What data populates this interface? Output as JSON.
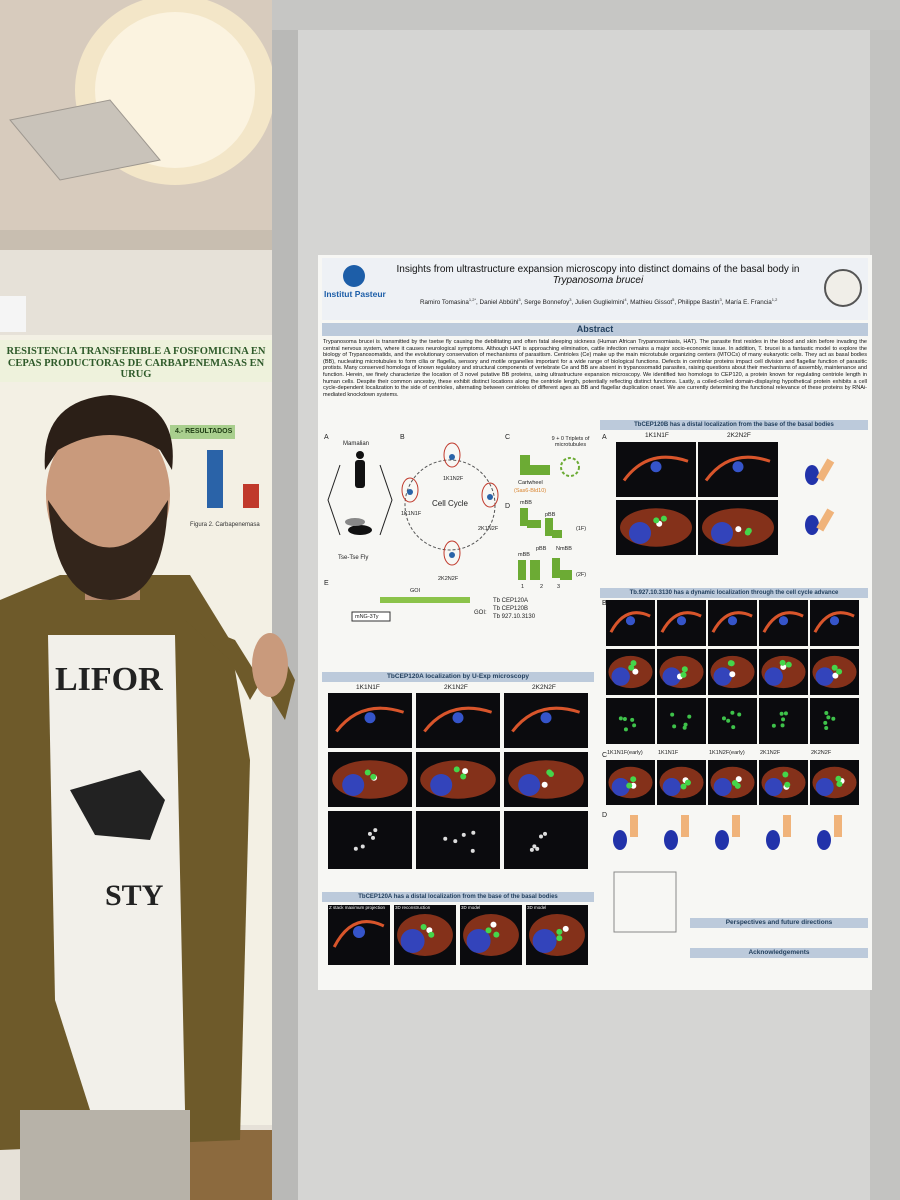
{
  "left_poster": {
    "title": "RESISTENCIA TRANSFERIBLE A FOSFOMICINA EN CEPAS PRODUCTORAS DE CARBAPENEMASAS EN URUG",
    "results_heading": "4.- RESULTADOS",
    "figure_caption": "Figura 2. Carbapenemasa"
  },
  "shirt": {
    "line1": "LIFOR",
    "line2": "STY"
  },
  "poster": {
    "institute": "Institut Pasteur",
    "title": "Insights from ultrastructure expansion microscopy into distinct domains of the basal body in",
    "title_species": "Trypanosoma brucei",
    "authors": [
      {
        "name": "Ramiro Tomasina",
        "affil": "1,2*"
      },
      {
        "name": "Daniel Abbühl",
        "affil": "3"
      },
      {
        "name": "Serge Bonnefoy",
        "affil": "3"
      },
      {
        "name": "Julien Guglielmini",
        "affil": "4"
      },
      {
        "name": "Mathieu Gissot",
        "affil": "5"
      },
      {
        "name": "Philippe Bastin",
        "affil": "3"
      },
      {
        "name": "María E. Francia",
        "affil": "1,2"
      }
    ],
    "abstract_heading": "Abstract",
    "abstract": "Trypanosoma brucei is transmitted by the tsetse fly causing the debilitating and often fatal sleeping sickness (Human African Trypanosomiasis, HAT). The parasite first resides in the blood and skin before invading the central nervous system, where it causes neurological symptoms. Although HAT is approaching elimination, cattle infection remains a major socio-economic issue. In addition, T. brucei is a fantastic model to explore the biology of Trypanosomatids, and the evolutionary conservation of mechanisms of parasitism. Centrioles (Ce) make up the main microtubule organizing centers (MTOCs) of many eukaryotic cells. They act as basal bodies (BB), nucleating microtubules to form cilia or flagella, sensory and motile organelles important for a wide range of biological functions. Defects in centriolar proteins impact cell division and flagellar function of parasitic protists. Many conserved homologs of known regulatory and structural components of vertebrate Ce and BB are absent in trypanosomatid parasites, raising questions about their mechanisms of assembly, maintenance and function. Herein, we finely characterize the location of 3 novel putative BB proteins, using ultrastructure expansion microscopy. We identified two homologs to CEP120, a protein known for regulating centriole length in human cells. Despite their common ancestry, these exhibit distinct locations along the centriole length, potentially reflecting distinct functions. Lastly, a coiled-coiled domain-displaying hypothetical protein exhibits a cell cycle-dependent localization to the side of centrioles, alternating between centrioles of different ages as BB and flagellar duplication onset. We are currently determining the functional relevance of these proteins by RNAi-mediated knockdown systems.",
    "figure1": {
      "letters": [
        "A",
        "B",
        "C",
        "D",
        "E"
      ],
      "host": "Mamalian",
      "vector": "Tse-Tse Fly",
      "cycle": "Cell Cycle",
      "stages": [
        "1K1N2F",
        "1K1N1F",
        "2K1N2F",
        "2K2N2F"
      ],
      "triplets": "9 + 0 Triplets of microtubules",
      "cartwheel": "Cartwheel",
      "cartwheel_proteins": "(Sas6-Bld10)",
      "bb_labels": [
        "mBB",
        "pBB",
        "(1F)",
        "mBB",
        "pBB",
        "NmBB",
        "(2F)"
      ],
      "bb_numbers": [
        "1",
        "2",
        "3"
      ],
      "goi": "GOI",
      "tag": "mNG-3Ty",
      "goi_list_label": "GOI:",
      "goi_list": [
        "Tb CEP120A",
        "Tb CEP120B",
        "Tb 927.10.3130"
      ]
    },
    "section_cep120a": "TbCEP120A localization by U-Exp microscopy",
    "cep120a_columns": [
      "1K1N1F",
      "2K1N2F",
      "2K2N2F"
    ],
    "section_cep120a_distal": "TbCEP120A has a distal localization from the base of the basal bodies",
    "distal_columns": [
      "Z stack maximum projection",
      "3D reconstruction",
      "3D model",
      "3D model"
    ],
    "section_cep120b": "TbCEP120B has a distal localization from the base of the basal bodies",
    "cep120b_columns": [
      "1K1N1F",
      "2K2N2F"
    ],
    "section_3130": "Tb.927.10.3130 has a dynamic localization through the cell cycle advance",
    "stage_columns": [
      "1K1N1F(early)",
      "1K1N1F",
      "1K1N2F(early)",
      "2K1N2F",
      "2K2N2F"
    ],
    "right_letters": [
      "A",
      "B",
      "C",
      "D"
    ],
    "section_perspectives": "Perspectives and future directions",
    "section_acknowledgements": "Acknowledgements"
  }
}
